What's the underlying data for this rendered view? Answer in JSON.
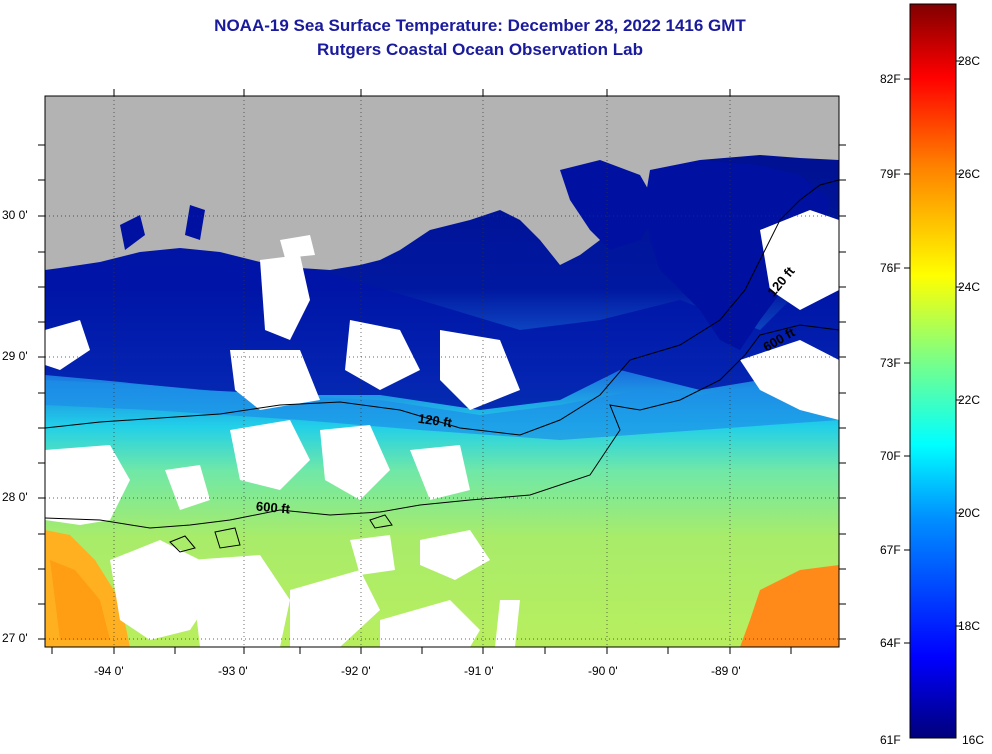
{
  "title": {
    "line1": "NOAA-19 Sea Surface Temperature:  December 28, 2022 1416 GMT",
    "line2": "Rutgers Coastal Ocean Observation Lab"
  },
  "axes": {
    "lon_ticks": [
      "-94 0'",
      "-93 0'",
      "-92 0'",
      "-91 0'",
      "-90 0'",
      "-89 0'"
    ],
    "lat_ticks": [
      "30 0'",
      "29 0'",
      "28 0'",
      "27 0'"
    ]
  },
  "contours": {
    "labels": [
      "120 ft",
      "600 ft",
      "120 ft",
      "600 ft"
    ]
  },
  "colorbar": {
    "fahrenheit": [
      "82F",
      "79F",
      "76F",
      "73F",
      "70F",
      "67F",
      "64F",
      "61F"
    ],
    "celsius": [
      "28C",
      "26C",
      "24C",
      "22C",
      "20C",
      "18C",
      "16C"
    ]
  },
  "colors": {
    "land": "#b3b3b3",
    "no_data": "#ffffff",
    "title": "#1a1a9c",
    "contour": "#000000"
  }
}
